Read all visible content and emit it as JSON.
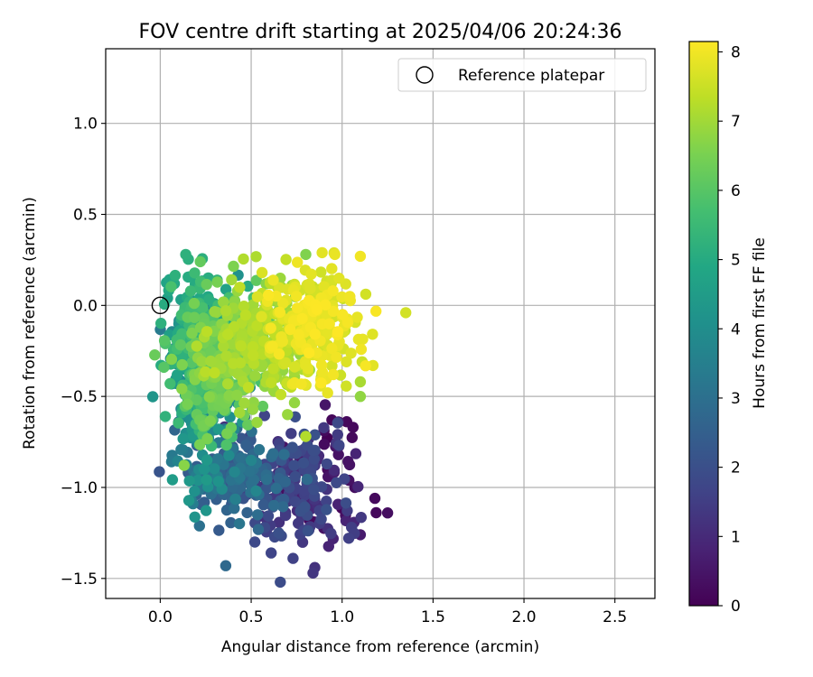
{
  "chart_data": {
    "type": "scatter",
    "title": "FOV centre drift starting at 2025/04/06 20:24:36",
    "xlabel": "Angular distance from reference (arcmin)",
    "ylabel": "Rotation from reference (arcmin)",
    "xlim": [
      -0.3,
      2.72
    ],
    "ylim": [
      -1.61,
      1.41
    ],
    "xticks": [
      0.0,
      0.5,
      1.0,
      1.5,
      2.0,
      2.5
    ],
    "xtick_labels": [
      "0.0",
      "0.5",
      "1.0",
      "1.5",
      "2.0",
      "2.5"
    ],
    "yticks": [
      1.0,
      0.5,
      0.0,
      -0.5,
      -1.0,
      -1.5
    ],
    "ytick_labels": [
      "1.0",
      "0.5",
      "0.0",
      "−0.5",
      "−1.0",
      "−1.5"
    ],
    "grid": true,
    "legend": {
      "placement": "top-right",
      "entries": [
        {
          "label": "Reference platepar",
          "marker": "open-circle"
        }
      ]
    },
    "reference_point": {
      "x": 0.0,
      "y": 0.0
    },
    "colorbar": {
      "label": "Hours from first FF file",
      "colormap": "viridis",
      "range": [
        0,
        8.15
      ],
      "ticks": [
        0,
        1,
        2,
        3,
        4,
        5,
        6,
        7,
        8
      ],
      "tick_labels": [
        "0",
        "1",
        "2",
        "3",
        "4",
        "5",
        "6",
        "7",
        "8"
      ]
    },
    "clusters_note_hours": "each cluster: hours range and spatial spread",
    "clusters": [
      {
        "t": [
          0.0,
          0.9
        ],
        "cx": 0.93,
        "cy": -1.0,
        "sx": 0.13,
        "sy": 0.22,
        "n": 45
      },
      {
        "t": [
          0.9,
          2.1
        ],
        "cx": 0.74,
        "cy": -1.0,
        "sx": 0.14,
        "sy": 0.19,
        "n": 150
      },
      {
        "t": [
          2.1,
          3.3
        ],
        "cx": 0.42,
        "cy": -0.93,
        "sx": 0.14,
        "sy": 0.13,
        "n": 160
      },
      {
        "t": [
          3.3,
          4.5
        ],
        "cx": 0.22,
        "cy": -0.5,
        "sx": 0.09,
        "sy": 0.25,
        "n": 220
      },
      {
        "t": [
          4.5,
          5.7
        ],
        "cx": 0.2,
        "cy": -0.22,
        "sx": 0.09,
        "sy": 0.22,
        "n": 220
      },
      {
        "t": [
          5.7,
          6.7
        ],
        "cx": 0.32,
        "cy": -0.33,
        "sx": 0.12,
        "sy": 0.2,
        "n": 220
      },
      {
        "t": [
          6.7,
          7.4
        ],
        "cx": 0.55,
        "cy": -0.2,
        "sx": 0.14,
        "sy": 0.17,
        "n": 230
      },
      {
        "t": [
          7.4,
          8.15
        ],
        "cx": 0.85,
        "cy": -0.1,
        "sx": 0.13,
        "sy": 0.16,
        "n": 230
      }
    ],
    "points": [
      {
        "x": 1.1,
        "y": -1.26,
        "t": 0.6
      },
      {
        "x": 1.25,
        "y": -1.14,
        "t": 0.3
      },
      {
        "x": 1.18,
        "y": -1.06,
        "t": 0.2
      },
      {
        "x": 1.07,
        "y": -1.0,
        "t": 0.3
      },
      {
        "x": 1.06,
        "y": -0.67,
        "t": 0.2
      },
      {
        "x": 0.98,
        "y": -0.82,
        "t": 0.4
      },
      {
        "x": 0.98,
        "y": -0.64,
        "t": 0.6
      },
      {
        "x": 0.84,
        "y": -1.47,
        "t": 1.3
      },
      {
        "x": 0.85,
        "y": -1.44,
        "t": 1.2
      },
      {
        "x": 0.66,
        "y": -1.52,
        "t": 1.9
      },
      {
        "x": 0.61,
        "y": -1.36,
        "t": 1.7
      },
      {
        "x": 0.73,
        "y": -1.39,
        "t": 1.6
      },
      {
        "x": 0.52,
        "y": -1.3,
        "t": 1.8
      },
      {
        "x": 0.36,
        "y": -1.43,
        "t": 2.8
      },
      {
        "x": 0.17,
        "y": -1.07,
        "t": 3.5
      },
      {
        "x": 0.18,
        "y": -1.09,
        "t": 3.4
      },
      {
        "x": 0.04,
        "y": 0.04,
        "t": 4.6
      },
      {
        "x": 1.35,
        "y": -0.04,
        "t": 7.6
      },
      {
        "x": 1.11,
        "y": -0.31,
        "t": 7.5
      },
      {
        "x": 1.17,
        "y": -0.33,
        "t": 7.8
      },
      {
        "x": 1.1,
        "y": 0.27,
        "t": 8.0
      },
      {
        "x": 0.96,
        "y": 0.28,
        "t": 7.9
      },
      {
        "x": 0.89,
        "y": 0.29,
        "t": 7.8
      },
      {
        "x": 0.8,
        "y": 0.28,
        "t": 6.6
      },
      {
        "x": 0.14,
        "y": 0.28,
        "t": 5.2
      },
      {
        "x": 0.22,
        "y": 0.24,
        "t": 6.2
      },
      {
        "x": 0.56,
        "y": 0.18,
        "t": 7.7
      },
      {
        "x": 0.02,
        "y": -0.34,
        "t": 6.0
      },
      {
        "x": 0.8,
        "y": -0.72,
        "t": 7.2
      },
      {
        "x": 0.7,
        "y": -0.6,
        "t": 6.9
      },
      {
        "x": 1.1,
        "y": -0.5,
        "t": 6.8
      },
      {
        "x": 1.1,
        "y": -0.42,
        "t": 7.1
      }
    ]
  }
}
